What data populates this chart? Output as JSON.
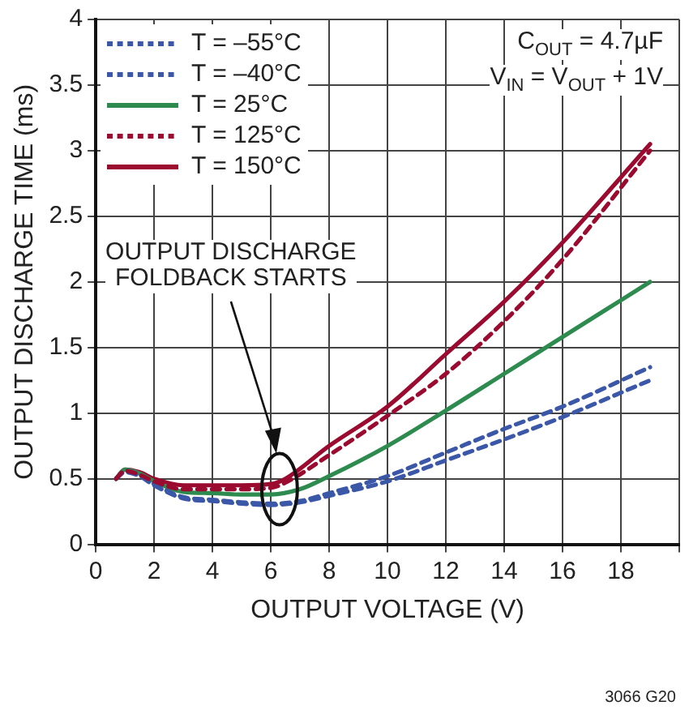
{
  "chart_data": {
    "type": "line",
    "xlabel": "OUTPUT VOLTAGE (V)",
    "ylabel": "OUTPUT DISCHARGE TIME (ms)",
    "xlim": [
      0,
      20
    ],
    "xticks": [
      0,
      2,
      4,
      6,
      8,
      10,
      12,
      14,
      16,
      18,
      {
        "value": 20,
        "label": null
      }
    ],
    "ylim": [
      0,
      4
    ],
    "yticks": [
      0,
      0.5,
      1,
      1.5,
      2,
      2.5,
      3,
      3.5,
      4
    ],
    "grid": true,
    "legend": "top left",
    "marker": "none",
    "annotations": [
      "C$_{OUT}$ = 4.7µF",
      "V$_{IN}$ = V$_{OUT}$ + 1V",
      "OUTPUT DISCHARGE\nFOLDBACK STARTS",
      "3066 G20"
    ],
    "series": [
      {
        "name": "T = –55°C",
        "color": "#3b57a8",
        "line_style": "dashed",
        "x": [
          0.7,
          1,
          1.5,
          2,
          3,
          4,
          5,
          6,
          7,
          8,
          10,
          12,
          14,
          16,
          19
        ],
        "values": [
          0.5,
          0.55,
          0.52,
          0.45,
          0.35,
          0.33,
          0.31,
          0.3,
          0.32,
          0.37,
          0.48,
          0.64,
          0.8,
          0.97,
          1.25
        ]
      },
      {
        "name": "T = –40°C",
        "color": "#3b57a8",
        "line_style": "dashed",
        "x": [
          0.7,
          1,
          1.5,
          2,
          3,
          4,
          5,
          6,
          7,
          8,
          10,
          12,
          14,
          16,
          19
        ],
        "values": [
          0.5,
          0.56,
          0.53,
          0.46,
          0.36,
          0.34,
          0.32,
          0.31,
          0.33,
          0.39,
          0.52,
          0.7,
          0.88,
          1.05,
          1.35
        ]
      },
      {
        "name": "T = 25°C",
        "color": "#2e8b4f",
        "line_style": "solid",
        "x": [
          0.7,
          1,
          1.5,
          2,
          3,
          4,
          5,
          6,
          7,
          8,
          10,
          12,
          14,
          16,
          19
        ],
        "values": [
          0.5,
          0.57,
          0.54,
          0.48,
          0.4,
          0.39,
          0.38,
          0.38,
          0.42,
          0.52,
          0.75,
          1.02,
          1.3,
          1.58,
          2.0
        ]
      },
      {
        "name": "T = 125°C",
        "color": "#9b0b30",
        "line_style": "dashed",
        "x": [
          0.7,
          1,
          1.5,
          2,
          3,
          4,
          5,
          6,
          6.5,
          8,
          10,
          12,
          14,
          16,
          19
        ],
        "values": [
          0.5,
          0.56,
          0.53,
          0.48,
          0.42,
          0.42,
          0.42,
          0.43,
          0.47,
          0.68,
          0.98,
          1.3,
          1.7,
          2.17,
          3.0
        ]
      },
      {
        "name": "T = 150°C",
        "color": "#9b0b30",
        "line_style": "solid",
        "x": [
          0.7,
          1,
          1.5,
          2,
          3,
          4,
          5,
          6,
          6.5,
          8,
          10,
          12,
          14,
          16,
          19
        ],
        "values": [
          0.5,
          0.57,
          0.55,
          0.5,
          0.45,
          0.45,
          0.45,
          0.46,
          0.5,
          0.75,
          1.05,
          1.45,
          1.85,
          2.3,
          3.05
        ]
      }
    ]
  }
}
